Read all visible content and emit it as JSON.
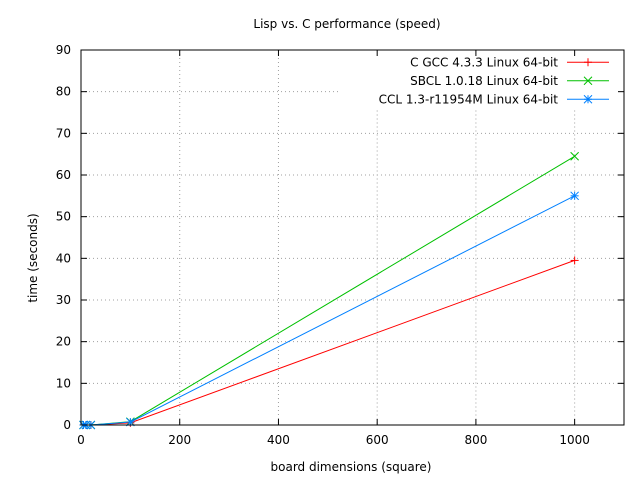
{
  "chart_data": {
    "type": "line",
    "title": "Lisp vs. C performance (speed)",
    "xlabel": "board dimensions (square)",
    "ylabel": "time (seconds)",
    "xlim": [
      0,
      1100
    ],
    "ylim": [
      0,
      90
    ],
    "xticks": [
      0,
      200,
      400,
      600,
      800,
      1000
    ],
    "yticks": [
      0,
      10,
      20,
      30,
      40,
      50,
      60,
      70,
      80,
      90
    ],
    "grid": true,
    "legend_position": "top-right",
    "series": [
      {
        "name": "C GCC 4.3.3 Linux 64-bit",
        "color": "#ff0000",
        "marker": "plus",
        "x": [
          5,
          10,
          20,
          100,
          1000
        ],
        "y": [
          0,
          0,
          0,
          0.5,
          39.5
        ]
      },
      {
        "name": "SBCL 1.0.18 Linux 64-bit",
        "color": "#00c000",
        "marker": "cross",
        "x": [
          5,
          10,
          20,
          100,
          1000
        ],
        "y": [
          0,
          0,
          0,
          0.8,
          64.5
        ]
      },
      {
        "name": "CCL 1.3-r11954M Linux 64-bit",
        "color": "#0080ff",
        "marker": "star",
        "x": [
          5,
          10,
          20,
          100,
          1000
        ],
        "y": [
          0,
          0,
          0,
          0.7,
          55
        ]
      }
    ]
  }
}
